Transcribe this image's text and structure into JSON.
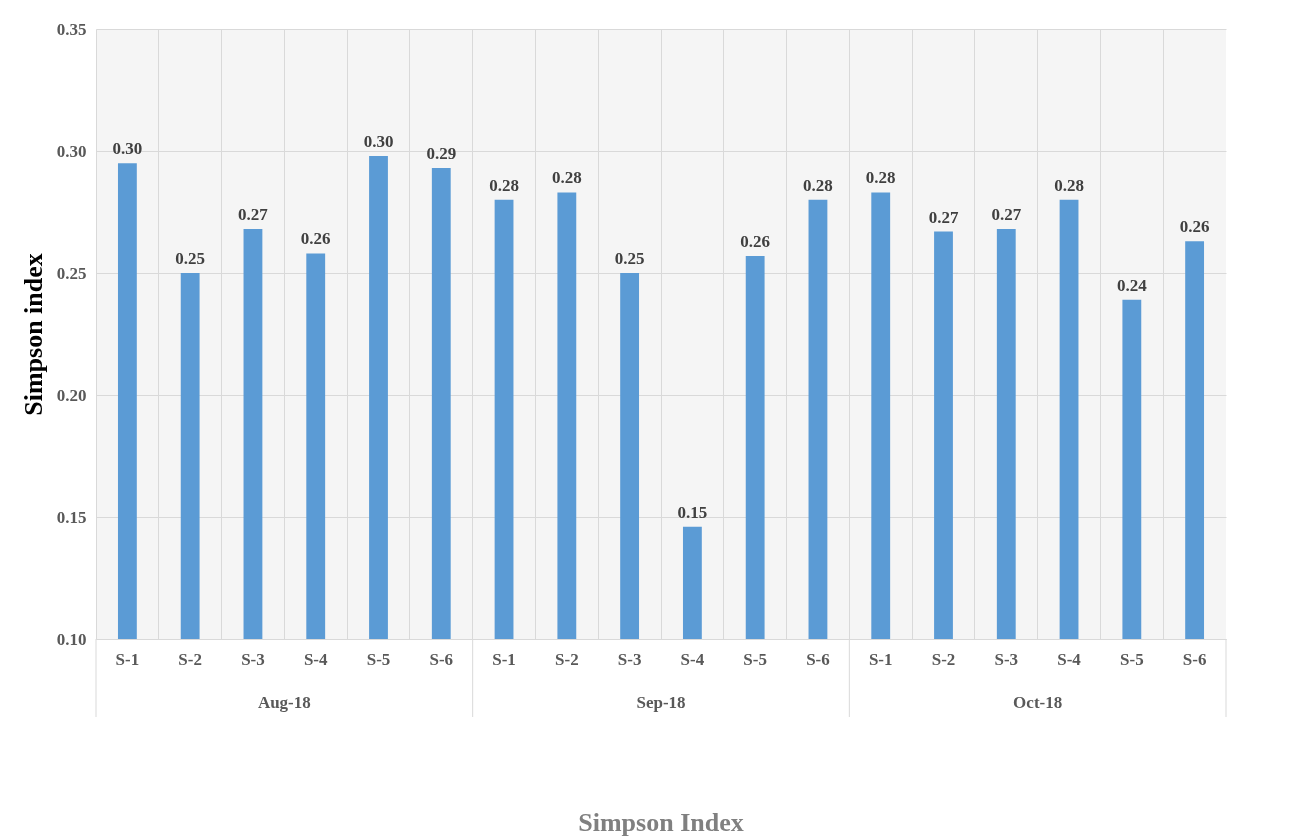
{
  "chart_data": {
    "type": "bar",
    "title": "Simpson Index",
    "ylabel": "Simpson index",
    "categories": [
      "S-1",
      "S-2",
      "S-3",
      "S-4",
      "S-5",
      "S-6",
      "S-1",
      "S-2",
      "S-3",
      "S-4",
      "S-5",
      "S-6",
      "S-1",
      "S-2",
      "S-3",
      "S-4",
      "S-5",
      "S-6"
    ],
    "values": [
      0.295,
      0.25,
      0.268,
      0.258,
      0.298,
      0.293,
      0.28,
      0.283,
      0.25,
      0.146,
      0.257,
      0.28,
      0.283,
      0.267,
      0.268,
      0.28,
      0.239,
      0.263
    ],
    "value_labels": [
      "0.30",
      "0.25",
      "0.27",
      "0.26",
      "0.30",
      "0.29",
      "0.28",
      "0.28",
      "0.25",
      "0.15",
      "0.26",
      "0.28",
      "0.28",
      "0.27",
      "0.27",
      "0.28",
      "0.24",
      "0.26"
    ],
    "color": "#5b9bd5",
    "annotations": [
      "Aug-18",
      "Sep-18",
      "Oct-18"
    ],
    "ylim": [
      0.1,
      0.35
    ],
    "yticks": [
      {
        "value": 0.1,
        "label": "0.10"
      },
      {
        "value": 0.15,
        "label": "0.15"
      },
      {
        "value": 0.2,
        "label": "0.20"
      },
      {
        "value": 0.25,
        "label": "0.25"
      },
      {
        "value": 0.3,
        "label": "0.30"
      },
      {
        "value": 0.35,
        "label": "0.35"
      }
    ],
    "grid": true
  }
}
